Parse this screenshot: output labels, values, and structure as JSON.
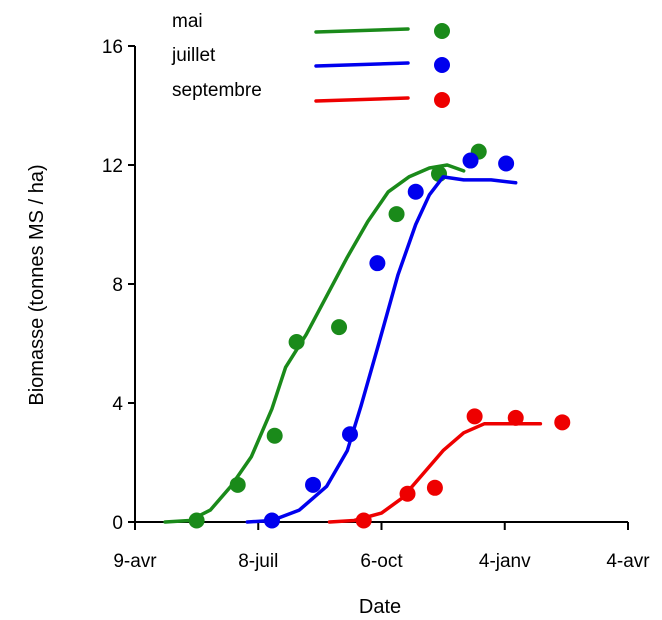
{
  "chart_data": {
    "type": "line",
    "xlabel": "Date",
    "ylabel": "Biomasse (tonnes MS / ha)",
    "ylim": [
      0,
      16
    ],
    "xlim": [
      0,
      360
    ],
    "x_tick_values": [
      0,
      90,
      180,
      270,
      360
    ],
    "x_tick_labels": [
      "9-avr",
      "8-juil",
      "6-oct",
      "4-janv",
      "4-avr"
    ],
    "y_ticks": [
      0,
      4,
      8,
      12,
      16
    ],
    "grid": false,
    "legend_position": "top-center",
    "series": [
      {
        "name": "mai",
        "color": "#1a8a1a",
        "line": [
          [
            22,
            0
          ],
          [
            40,
            0.05
          ],
          [
            55,
            0.4
          ],
          [
            70,
            1.2
          ],
          [
            85,
            2.2
          ],
          [
            100,
            3.8
          ],
          [
            110,
            5.2
          ],
          [
            125,
            6.3
          ],
          [
            140,
            7.6
          ],
          [
            155,
            8.9
          ],
          [
            170,
            10.1
          ],
          [
            185,
            11.1
          ],
          [
            200,
            11.6
          ],
          [
            215,
            11.9
          ],
          [
            228,
            12.0
          ],
          [
            240,
            11.8
          ]
        ],
        "points": [
          [
            45,
            0.05
          ],
          [
            75,
            1.25
          ],
          [
            102,
            2.9
          ],
          [
            118,
            6.05
          ],
          [
            149,
            6.55
          ],
          [
            191,
            10.35
          ],
          [
            222,
            11.7
          ],
          [
            251,
            12.45
          ]
        ]
      },
      {
        "name": "juillet",
        "color": "#0000ee",
        "line": [
          [
            82,
            0
          ],
          [
            100,
            0.05
          ],
          [
            120,
            0.4
          ],
          [
            140,
            1.2
          ],
          [
            155,
            2.4
          ],
          [
            165,
            3.9
          ],
          [
            178,
            6.0
          ],
          [
            192,
            8.3
          ],
          [
            205,
            10.0
          ],
          [
            215,
            11.0
          ],
          [
            225,
            11.6
          ],
          [
            240,
            11.5
          ],
          [
            260,
            11.5
          ],
          [
            278,
            11.4
          ]
        ],
        "points": [
          [
            100,
            0.05
          ],
          [
            130,
            1.25
          ],
          [
            157,
            2.95
          ],
          [
            177,
            8.7
          ],
          [
            205,
            11.1
          ],
          [
            245,
            12.15
          ],
          [
            271,
            12.05
          ]
        ]
      },
      {
        "name": "septembre",
        "color": "#ee0000",
        "line": [
          [
            142,
            0
          ],
          [
            160,
            0.05
          ],
          [
            180,
            0.3
          ],
          [
            195,
            0.8
          ],
          [
            210,
            1.6
          ],
          [
            225,
            2.4
          ],
          [
            240,
            3.0
          ],
          [
            255,
            3.3
          ],
          [
            270,
            3.3
          ],
          [
            296,
            3.3
          ]
        ],
        "points": [
          [
            167,
            0.05
          ],
          [
            199,
            0.95
          ],
          [
            219,
            1.15
          ],
          [
            248,
            3.55
          ],
          [
            278,
            3.5
          ],
          [
            312,
            3.35
          ]
        ]
      }
    ]
  }
}
